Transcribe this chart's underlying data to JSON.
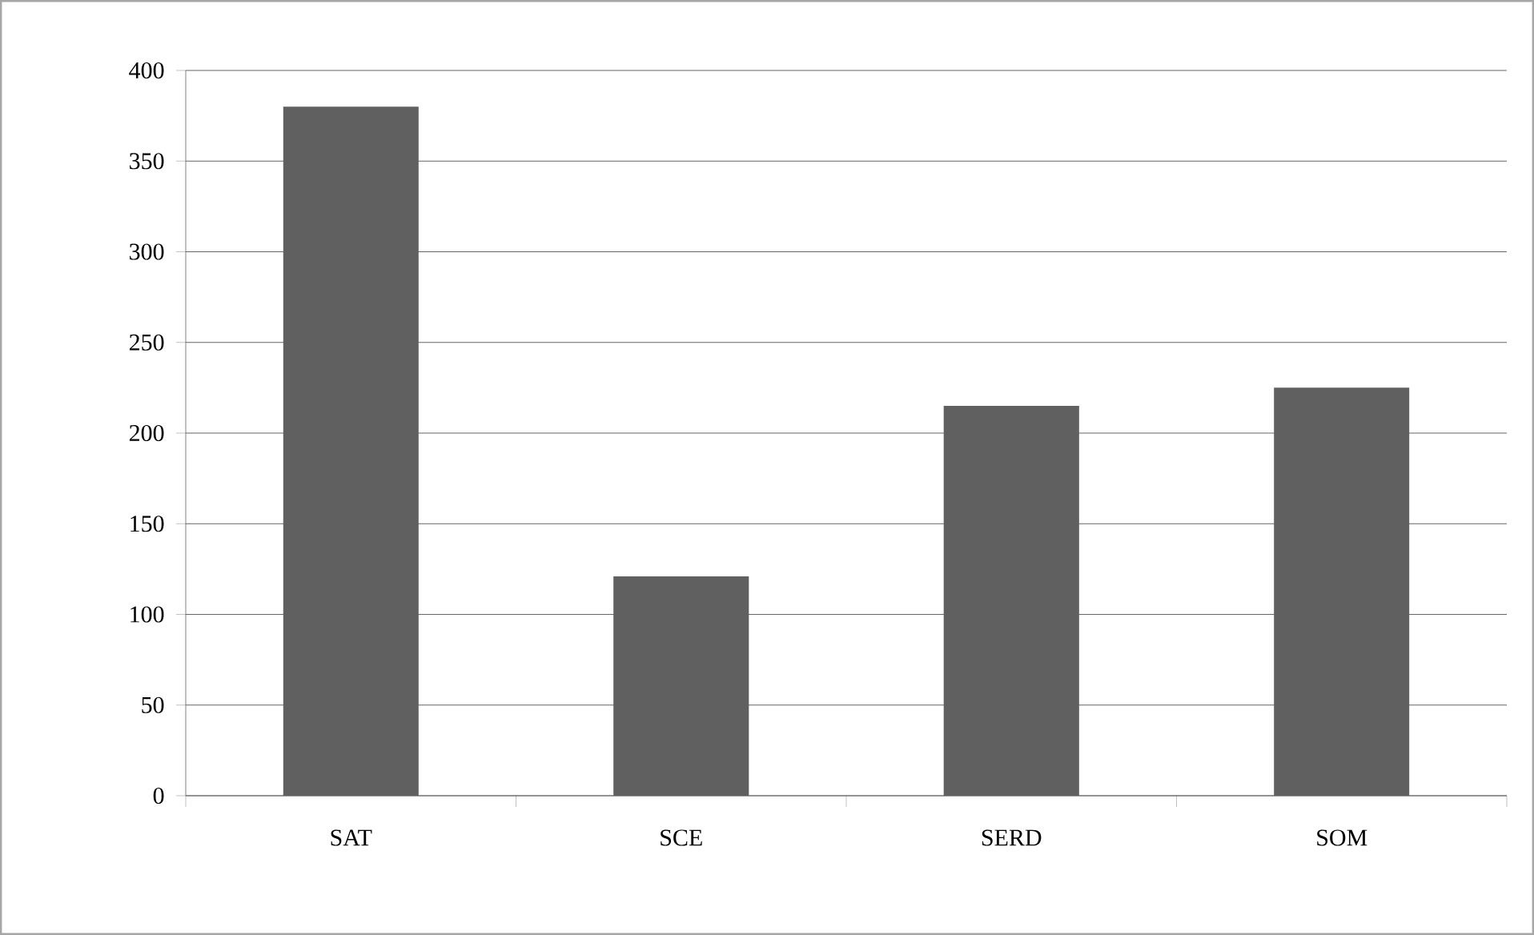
{
  "chart_data": {
    "type": "bar",
    "categories": [
      "SAT",
      "SCE",
      "SERD",
      "SOM"
    ],
    "values": [
      380,
      121,
      215,
      225
    ],
    "color": "#606060",
    "ylim": [
      0,
      400
    ],
    "yticks": [
      0,
      50,
      100,
      150,
      200,
      250,
      300,
      350,
      400
    ],
    "grid": "y"
  }
}
